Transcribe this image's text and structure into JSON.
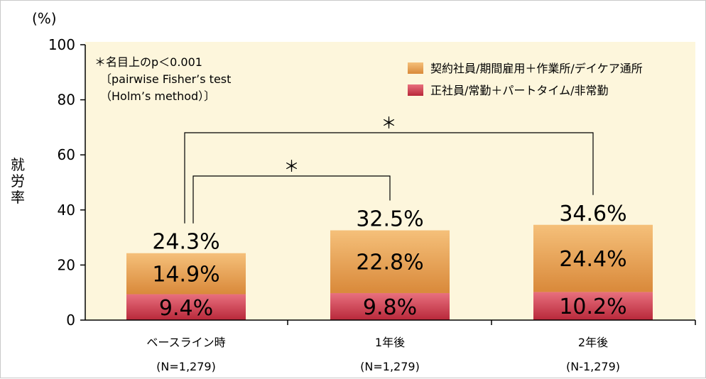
{
  "chart_data": {
    "type": "bar",
    "stacked": true,
    "ylabel": "就労率",
    "yunit": "(%)",
    "ylim": [
      0,
      100
    ],
    "yticks": [
      0,
      20,
      40,
      60,
      80,
      100
    ],
    "categories": [
      "ベースライン時",
      "1年後",
      "2年後"
    ],
    "sublabels": [
      "(N=1,279)",
      "(N=1,279)",
      "(N-1,279)"
    ],
    "series": [
      {
        "name": "正社員/常勤＋パートタイム/非常勤",
        "values": [
          9.4,
          9.8,
          10.2
        ],
        "labels": [
          "9.4%",
          "9.8%",
          "10.2%"
        ],
        "color_top": "#e8707e",
        "color_bottom": "#b8283a"
      },
      {
        "name": "契約社員/期間雇用＋作業所/デイケア通所",
        "values": [
          14.9,
          22.8,
          24.4
        ],
        "labels": [
          "14.9%",
          "22.8%",
          "24.4%"
        ],
        "color_top": "#f5c07a",
        "color_bottom": "#d9893a"
      }
    ],
    "totals": [
      "24.3%",
      "32.5%",
      "34.6%"
    ],
    "legend_position": "top-right",
    "grid": false,
    "plot_background": "#fdf6dc",
    "note_lines": [
      "＊名目上のp＜0.001",
      "〔pairwise Fisher’s test",
      "（Holm’s method）〕"
    ],
    "significance": [
      {
        "from": 0,
        "to": 1,
        "marker": "＊"
      },
      {
        "from": 0,
        "to": 2,
        "marker": "＊"
      }
    ]
  }
}
